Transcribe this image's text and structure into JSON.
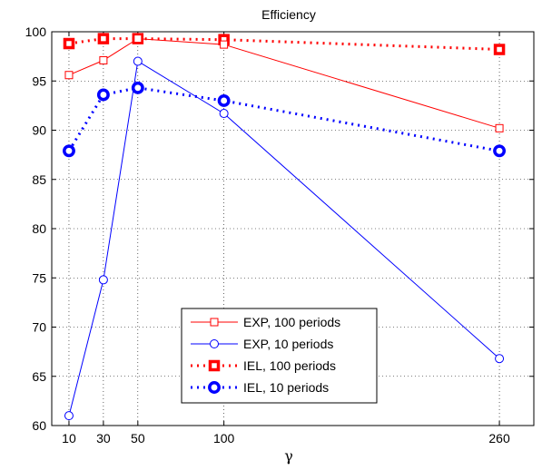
{
  "chart_data": {
    "type": "line",
    "title": "Efficiency",
    "xlabel": "γ",
    "ylabel": "",
    "xlim": [
      0,
      280
    ],
    "ylim": [
      60,
      100
    ],
    "x_ticks": [
      10,
      30,
      50,
      100,
      260
    ],
    "y_ticks": [
      60,
      65,
      70,
      75,
      80,
      85,
      90,
      95,
      100
    ],
    "grid": true,
    "legend_position": "bottom-center",
    "x": [
      10,
      30,
      50,
      100,
      260
    ],
    "series": [
      {
        "name": "EXP, 100 periods",
        "values": [
          95.6,
          97.1,
          99.3,
          98.7,
          90.2
        ],
        "color": "#ff0000",
        "line_style": "solid",
        "marker": "square-open"
      },
      {
        "name": "EXP, 10 periods",
        "values": [
          61.0,
          74.8,
          97.0,
          91.7,
          66.8
        ],
        "color": "#0000ff",
        "line_style": "solid",
        "marker": "circle-open"
      },
      {
        "name": "IEL, 100 periods",
        "values": [
          98.8,
          99.3,
          99.3,
          99.2,
          98.2
        ],
        "color": "#ff0000",
        "line_style": "dotted",
        "marker": "square-bold"
      },
      {
        "name": "IEL, 10 periods",
        "values": [
          87.9,
          93.6,
          94.3,
          93.0,
          87.9
        ],
        "color": "#0000ff",
        "line_style": "dotted",
        "marker": "circle-bold"
      }
    ]
  }
}
